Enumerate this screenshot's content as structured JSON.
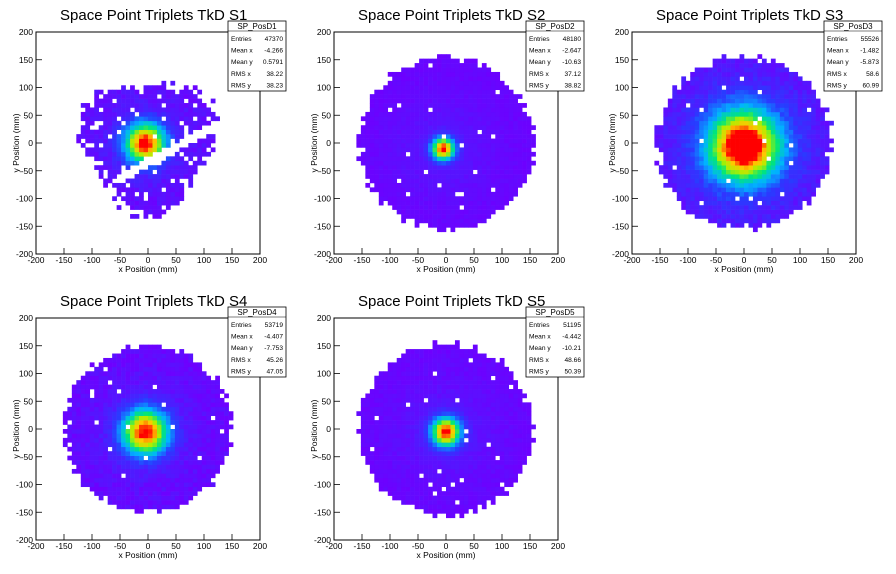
{
  "chart_data": [
    {
      "type": "heatmap",
      "title": "Space Point Triplets TkD S1",
      "xlabel": "x Position (mm)",
      "ylabel": "y Position (mm)",
      "xlim": [
        -200,
        200
      ],
      "ylim": [
        -200,
        200
      ],
      "xticks": [
        "-200",
        "-150",
        "-100",
        "-50",
        "0",
        "50",
        "100",
        "150",
        "200"
      ],
      "yticks": [
        "200",
        "150",
        "100",
        "50",
        "0",
        "-50",
        "-100",
        "-150",
        "-200"
      ],
      "stats": {
        "name": "SP_PosD1",
        "rows": [
          {
            "label": "Entries",
            "value": "47370"
          },
          {
            "label": "Mean x",
            "value": "-4.266"
          },
          {
            "label": "Mean y",
            "value": "0.5791"
          },
          {
            "label": "RMS x",
            "value": "38.22"
          },
          {
            "label": "RMS y",
            "value": "38.23"
          }
        ]
      },
      "distribution": {
        "center": [
          -5,
          0
        ],
        "sigma": 25,
        "radius": 115,
        "gap": "diagonal",
        "spread": 0.6
      }
    },
    {
      "type": "heatmap",
      "title": "Space Point Triplets TkD S2",
      "xlabel": "x Position (mm)",
      "ylabel": "y Position (mm)",
      "xlim": [
        -200,
        200
      ],
      "ylim": [
        -200,
        200
      ],
      "xticks": [
        "-200",
        "-150",
        "-100",
        "-50",
        "0",
        "50",
        "100",
        "150",
        "200"
      ],
      "yticks": [
        "200",
        "150",
        "100",
        "50",
        "0",
        "-50",
        "-100",
        "-150",
        "-200"
      ],
      "stats": {
        "name": "SP_PosD2",
        "rows": [
          {
            "label": "Entries",
            "value": "48180"
          },
          {
            "label": "Mean x",
            "value": "-2.647"
          },
          {
            "label": "Mean y",
            "value": "-10.63"
          },
          {
            "label": "RMS x",
            "value": "37.12"
          },
          {
            "label": "RMS y",
            "value": "38.82"
          }
        ]
      },
      "distribution": {
        "center": [
          -5,
          -10
        ],
        "sigma": 14,
        "radius": 155,
        "gap": "none",
        "spread": 0.25
      }
    },
    {
      "type": "heatmap",
      "title": "Space Point Triplets TkD S3",
      "xlabel": "x Position (mm)",
      "ylabel": "y Position (mm)",
      "xlim": [
        -200,
        200
      ],
      "ylim": [
        -200,
        200
      ],
      "xticks": [
        "-200",
        "-150",
        "-100",
        "-50",
        "0",
        "50",
        "100",
        "150",
        "200"
      ],
      "yticks": [
        "200",
        "150",
        "100",
        "50",
        "0",
        "-50",
        "-100",
        "-150",
        "-200"
      ],
      "stats": {
        "name": "SP_PosD3",
        "rows": [
          {
            "label": "Entries",
            "value": "55526"
          },
          {
            "label": "Mean x",
            "value": "-1.482"
          },
          {
            "label": "Mean y",
            "value": "-5.873"
          },
          {
            "label": "RMS x",
            "value": "58.6"
          },
          {
            "label": "RMS y",
            "value": "60.99"
          }
        ]
      },
      "distribution": {
        "center": [
          0,
          -5
        ],
        "sigma": 40,
        "radius": 155,
        "gap": "none",
        "spread": 0.7
      }
    },
    {
      "type": "heatmap",
      "title": "Space Point Triplets TkD S4",
      "xlabel": "x Position (mm)",
      "ylabel": "y Position (mm)",
      "xlim": [
        -200,
        200
      ],
      "ylim": [
        -200,
        200
      ],
      "xticks": [
        "-200",
        "-150",
        "-100",
        "-50",
        "0",
        "50",
        "100",
        "150",
        "200"
      ],
      "yticks": [
        "200",
        "150",
        "100",
        "50",
        "0",
        "-50",
        "-100",
        "-150",
        "-200"
      ],
      "stats": {
        "name": "SP_PosD4",
        "rows": [
          {
            "label": "Entries",
            "value": "53719"
          },
          {
            "label": "Mean x",
            "value": "-4.407"
          },
          {
            "label": "Mean y",
            "value": "-7.753"
          },
          {
            "label": "RMS x",
            "value": "45.26"
          },
          {
            "label": "RMS y",
            "value": "47.05"
          }
        ]
      },
      "distribution": {
        "center": [
          -5,
          -5
        ],
        "sigma": 28,
        "radius": 150,
        "gap": "none",
        "spread": 0.55
      }
    },
    {
      "type": "heatmap",
      "title": "Space Point Triplets TkD S5",
      "xlabel": "x Position (mm)",
      "ylabel": "y Position (mm)",
      "xlim": [
        -200,
        200
      ],
      "ylim": [
        -200,
        200
      ],
      "xticks": [
        "-200",
        "-150",
        "-100",
        "-50",
        "0",
        "50",
        "100",
        "150",
        "200"
      ],
      "yticks": [
        "200",
        "150",
        "100",
        "50",
        "0",
        "-50",
        "-100",
        "-150",
        "-200"
      ],
      "stats": {
        "name": "SP_PosD5",
        "rows": [
          {
            "label": "Entries",
            "value": "51195"
          },
          {
            "label": "Mean x",
            "value": "-4.442"
          },
          {
            "label": "Mean y",
            "value": "-10.21"
          },
          {
            "label": "RMS x",
            "value": "48.66"
          },
          {
            "label": "RMS y",
            "value": "50.39"
          }
        ]
      },
      "distribution": {
        "center": [
          0,
          -5
        ],
        "sigma": 18,
        "radius": 155,
        "gap": "none",
        "spread": 0.3
      }
    }
  ]
}
